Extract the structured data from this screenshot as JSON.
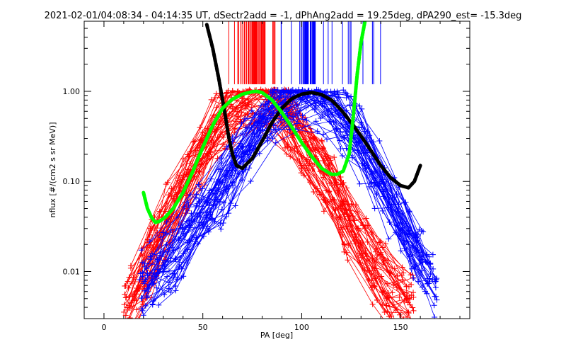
{
  "chart_data": {
    "type": "line",
    "title": "2021-02-01/04:08:34 - 04:14:35 UT, dSectr2add = -1, dPhAng2add = 19.25deg, dPA290_est= -15.3deg",
    "xlabel": "PA [deg]",
    "ylabel": "nflux [#/(cm2 s sr MeV)]",
    "xlim": [
      -10,
      185
    ],
    "ylim": [
      0.003,
      6.0
    ],
    "yscale": "log",
    "xticks": [
      0,
      50,
      100,
      150
    ],
    "xtick_labels": [
      "0",
      "50",
      "100",
      "150"
    ],
    "yticks": [
      0.01,
      0.1,
      1.0
    ],
    "ytick_labels": [
      "0.01",
      "0.10",
      "1.00"
    ],
    "grid": false,
    "legend": "none",
    "colors": {
      "red": "#ff0000",
      "blue": "#0000ff",
      "black": "#000000",
      "green": "#00ff00"
    },
    "series": [
      {
        "color": "red",
        "style": "lines+plus-markers",
        "peak_pa": 77,
        "pa_range": [
          10,
          158
        ],
        "description_values": {
          "x": [
            12,
            20,
            30,
            40,
            50,
            60,
            70,
            77,
            85,
            95,
            105,
            115,
            125,
            135,
            145,
            155
          ],
          "y": [
            0.004,
            0.008,
            0.03,
            0.08,
            0.2,
            0.45,
            0.8,
            0.95,
            0.8,
            0.4,
            0.2,
            0.08,
            0.03,
            0.012,
            0.006,
            0.004
          ]
        }
      },
      {
        "color": "blue",
        "style": "lines+plus-markers",
        "peak_pa": 103,
        "pa_range": [
          18,
          170
        ],
        "description_values": {
          "x": [
            20,
            30,
            40,
            50,
            60,
            70,
            80,
            90,
            103,
            115,
            125,
            135,
            145,
            155,
            165,
            170
          ],
          "y": [
            0.007,
            0.012,
            0.02,
            0.04,
            0.08,
            0.2,
            0.45,
            0.8,
            0.95,
            0.7,
            0.4,
            0.15,
            0.06,
            0.02,
            0.01,
            0.007
          ]
        }
      },
      {
        "color": "black",
        "style": "thick-dashed",
        "x": [
          52,
          55,
          58,
          61,
          63,
          65,
          67,
          70,
          75,
          80,
          85,
          90,
          95,
          100,
          105,
          110,
          115,
          120,
          125,
          130,
          135,
          140,
          145,
          150,
          154,
          157,
          160
        ],
        "y": [
          5.5,
          3.0,
          1.4,
          0.6,
          0.32,
          0.2,
          0.15,
          0.14,
          0.18,
          0.28,
          0.45,
          0.65,
          0.83,
          0.93,
          0.97,
          0.92,
          0.8,
          0.62,
          0.45,
          0.32,
          0.22,
          0.15,
          0.11,
          0.09,
          0.085,
          0.1,
          0.15
        ]
      },
      {
        "color": "green",
        "style": "thick-dashed",
        "x": [
          20,
          22,
          24,
          26,
          28,
          31,
          35,
          40,
          45,
          50,
          55,
          60,
          65,
          70,
          75,
          77,
          80,
          85,
          90,
          95,
          100,
          105,
          110,
          115,
          118,
          121,
          124,
          126,
          128,
          130,
          132
        ],
        "y": [
          0.075,
          0.05,
          0.04,
          0.035,
          0.036,
          0.04,
          0.05,
          0.075,
          0.13,
          0.24,
          0.42,
          0.65,
          0.82,
          0.93,
          0.99,
          1.0,
          0.97,
          0.8,
          0.58,
          0.4,
          0.27,
          0.19,
          0.14,
          0.12,
          0.12,
          0.13,
          0.2,
          0.5,
          1.5,
          3.5,
          6.0
        ]
      }
    ],
    "vertical_marks": [
      {
        "color": "red",
        "pa_center": 77,
        "pa_spread": [
          63,
          90
        ],
        "y_bottom": 1.2
      },
      {
        "color": "blue",
        "pa_center": 103,
        "pa_spread": [
          88,
          140
        ],
        "y_bottom": 1.2
      }
    ]
  }
}
